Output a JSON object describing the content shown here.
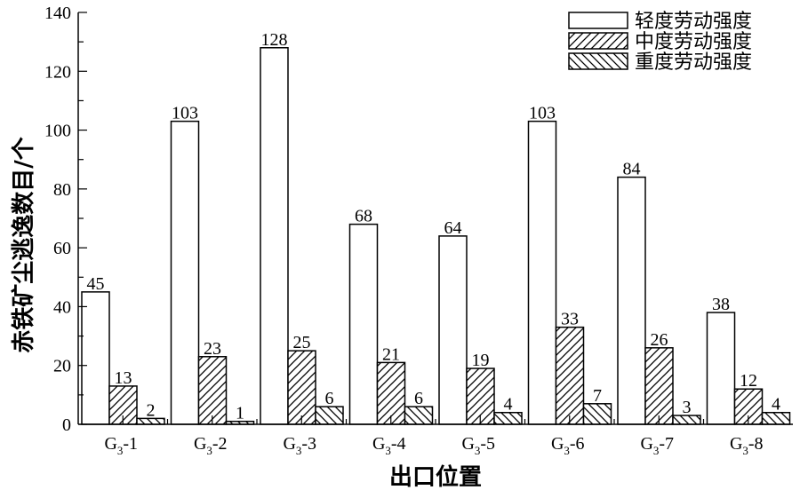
{
  "chart_data": {
    "type": "bar",
    "categories": [
      {
        "main": "G",
        "sub": "3",
        "suffix": "-1"
      },
      {
        "main": "G",
        "sub": "3",
        "suffix": "-2"
      },
      {
        "main": "G",
        "sub": "3",
        "suffix": "-3"
      },
      {
        "main": "G",
        "sub": "3",
        "suffix": "-4"
      },
      {
        "main": "G",
        "sub": "3",
        "suffix": "-5"
      },
      {
        "main": "G",
        "sub": "3",
        "suffix": "-6"
      },
      {
        "main": "G",
        "sub": "3",
        "suffix": "-7"
      },
      {
        "main": "G",
        "sub": "3",
        "suffix": "-8"
      }
    ],
    "series": [
      {
        "name": "轻度劳动强度",
        "pattern": "none",
        "values": [
          45,
          103,
          128,
          68,
          64,
          103,
          84,
          38
        ]
      },
      {
        "name": "中度劳动强度",
        "pattern": "hatch-up",
        "values": [
          13,
          23,
          25,
          21,
          19,
          33,
          26,
          12
        ]
      },
      {
        "name": "重度劳动强度",
        "pattern": "hatch-down",
        "values": [
          2,
          1,
          6,
          6,
          4,
          7,
          3,
          4
        ]
      }
    ],
    "xlabel": "出口位置",
    "ylabel": "赤铁矿尘逃逸数目/个",
    "ylim": [
      0,
      140
    ],
    "yticks": [
      0,
      20,
      40,
      60,
      80,
      100,
      120,
      140
    ],
    "legend_position": "top-right",
    "grid": false
  }
}
